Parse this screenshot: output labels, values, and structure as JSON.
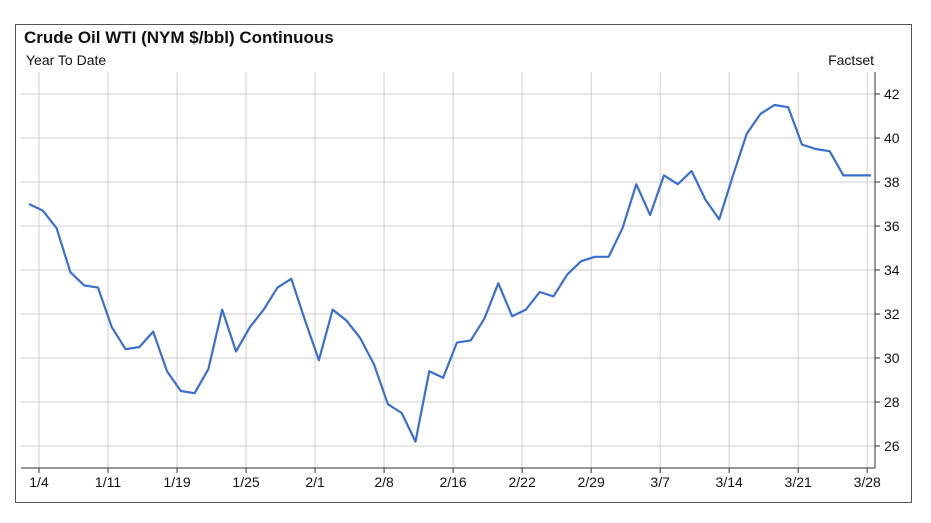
{
  "chart_data": {
    "type": "line",
    "title": "Crude Oil WTI (NYM $/bbl) Continuous",
    "subtitle": "Year To Date",
    "source": "Factset",
    "xlabel": "",
    "ylabel": "",
    "ylim": [
      25,
      43
    ],
    "yticks": [
      26,
      28,
      30,
      32,
      34,
      36,
      38,
      40,
      42
    ],
    "xtick_labels": [
      "1/4",
      "1/11",
      "1/19",
      "1/25",
      "2/1",
      "2/8",
      "2/16",
      "2/22",
      "2/29",
      "3/7",
      "3/14",
      "3/21",
      "3/28"
    ],
    "grid": true,
    "line_color": "#3a6fd0",
    "series": [
      {
        "values": [
          37.0,
          36.7,
          35.9,
          33.9,
          33.3,
          33.2,
          31.4,
          30.4,
          30.5,
          31.2,
          29.4,
          28.5,
          28.4,
          29.5,
          32.2,
          30.3,
          31.4,
          32.2,
          33.2,
          33.6,
          31.7,
          29.9,
          32.2,
          31.7,
          30.9,
          29.7,
          27.9,
          27.5,
          26.2,
          29.4,
          29.1,
          30.7,
          30.8,
          31.8,
          33.4,
          31.9,
          32.2,
          33.0,
          32.8,
          33.8,
          34.4,
          34.6,
          34.6,
          35.9,
          37.9,
          36.5,
          38.3,
          37.9,
          38.5,
          37.2,
          36.3,
          38.3,
          40.2,
          41.1,
          41.5,
          41.4,
          39.7,
          39.5,
          39.4,
          38.3,
          38.3,
          38.3
        ]
      }
    ]
  }
}
